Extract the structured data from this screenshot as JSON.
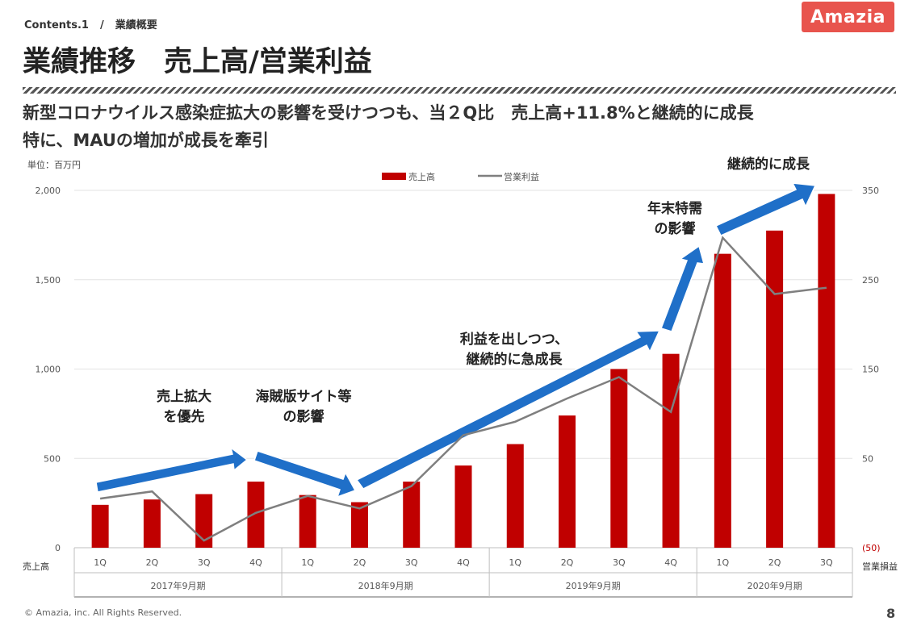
{
  "header": {
    "section": "Contents.1",
    "separator": "/",
    "section_title": "業績概要",
    "title": "業績推移　売上高/営業利益",
    "logo": "Amazia"
  },
  "subtitle": {
    "line1": "新型コロナウイルス感染症拡大の影響を受けつつも、当２Q比　売上高+11.8%と継続的に成長",
    "line2": "特に、MAUの増加が成長を牽引"
  },
  "unit_label": "単位：百万円",
  "callouts": {
    "c1": [
      "売上拡大",
      "を優先"
    ],
    "c2": [
      "海賊版サイト等",
      "の影響"
    ],
    "c3": [
      "利益を出しつつ、",
      "継続的に急成長"
    ],
    "c4": [
      "年末特需",
      "の影響"
    ],
    "c5": [
      "継続的に成長"
    ]
  },
  "footer": {
    "copyright": "© Amazia, inc. All Rights Reserved.",
    "page": "8"
  },
  "colors": {
    "bar": "#c00000",
    "line": "#7f7f7f",
    "arrow": "#1f6fc8",
    "logo": "#e8544d",
    "negative_tick": "#c00000"
  },
  "chart_data": {
    "type": "bar",
    "categories": [
      "1Q",
      "2Q",
      "3Q",
      "4Q",
      "1Q",
      "2Q",
      "3Q",
      "4Q",
      "1Q",
      "2Q",
      "3Q",
      "4Q",
      "1Q",
      "2Q",
      "3Q"
    ],
    "groups": [
      {
        "label": "2017年9月期",
        "count": 4
      },
      {
        "label": "2018年9月期",
        "count": 4
      },
      {
        "label": "2019年9月期",
        "count": 4
      },
      {
        "label": "2020年9月期",
        "count": 3
      }
    ],
    "series": [
      {
        "name": "売上高",
        "type": "bar",
        "axis": "left",
        "values": [
          240,
          270,
          300,
          370,
          295,
          255,
          370,
          460,
          580,
          740,
          1000,
          1085,
          1645,
          1775,
          1980
        ]
      },
      {
        "name": "営業利益",
        "type": "line",
        "axis": "right",
        "values": [
          5,
          13,
          -42,
          -11,
          8,
          -6,
          19,
          76,
          91,
          117,
          141,
          102,
          297,
          234,
          241
        ]
      }
    ],
    "ylim_left": [
      0,
      2000
    ],
    "yticks_left": [
      "0",
      "500",
      "1,000",
      "1,500",
      "2,000"
    ],
    "ylim_right": [
      -50,
      350
    ],
    "yticks_right": [
      "(50)",
      "50",
      "150",
      "250",
      "350"
    ],
    "ylabel_left": "売上高",
    "ylabel_right": "営業損益",
    "legend_position": "top",
    "grid": true
  }
}
